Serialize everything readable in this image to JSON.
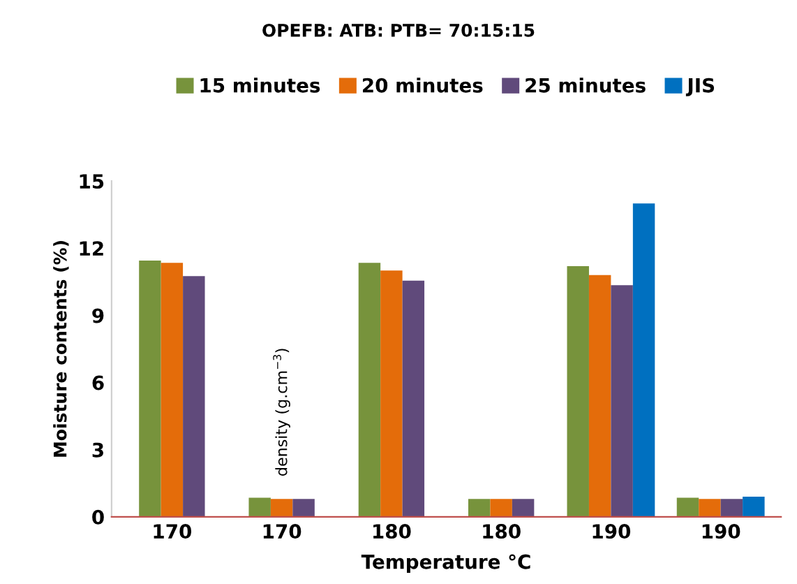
{
  "chart_data": {
    "type": "bar",
    "title": "OPEFB: ATB: PTB= 70:15:15",
    "xlabel": "Temperature °C",
    "ylabel": "Moisture contents (%)",
    "categories": [
      "170",
      "170",
      "180",
      "180",
      "190",
      "190"
    ],
    "series": [
      {
        "name": "15 minutes",
        "color": "#77933c",
        "values": [
          11.45,
          0.85,
          11.35,
          0.8,
          11.2,
          0.85
        ]
      },
      {
        "name": "20 minutes",
        "color": "#e46c0a",
        "values": [
          11.35,
          0.8,
          11.0,
          0.8,
          10.8,
          0.8
        ]
      },
      {
        "name": "25 minutes",
        "color": "#604a7b",
        "values": [
          10.75,
          0.8,
          10.55,
          0.8,
          10.35,
          0.8
        ]
      },
      {
        "name": "JIS",
        "color": "#0070c0",
        "values": [
          null,
          null,
          null,
          null,
          14.0,
          0.9
        ]
      }
    ],
    "annotations": [
      "density (g.cm$^{−3}$)"
    ],
    "ylim": [
      0,
      15
    ],
    "yticks": [
      0,
      3,
      6,
      9,
      12,
      15
    ],
    "grid": false,
    "legend": "top"
  }
}
